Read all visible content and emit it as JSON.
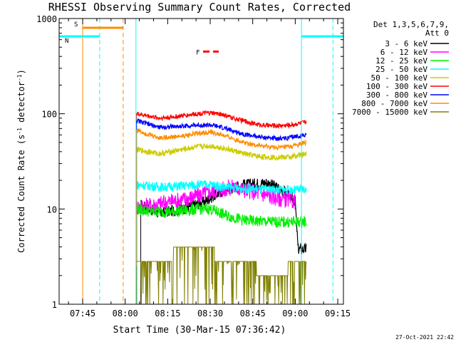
{
  "chart_data": {
    "type": "line",
    "title": "RHESSI Observing Summary Count Rates, Corrected",
    "ylabel_main": "Corrected Count Rate (s",
    "ylabel_sup": "-1",
    "ylabel_mid": " detector",
    "ylabel_sup2": "-1",
    "ylabel_end": ")",
    "xlabel": "Start Time (30-Mar-15 07:36:42)",
    "timestamp": "27-Oct-2021 22:42",
    "y_scale": "log",
    "ylim": [
      1,
      1000
    ],
    "xlim_minutes": [
      456.7,
      557.0
    ],
    "grid": false,
    "legend_placement": "top-right",
    "x_ticks": [
      {
        "min": 465,
        "label": "07:45"
      },
      {
        "min": 480,
        "label": "08:00"
      },
      {
        "min": 495,
        "label": "08:15"
      },
      {
        "min": 510,
        "label": "08:30"
      },
      {
        "min": 525,
        "label": "08:45"
      },
      {
        "min": 540,
        "label": "09:00"
      },
      {
        "min": 555,
        "label": "09:15"
      }
    ],
    "y_ticks": [
      {
        "value": 1,
        "label": "1"
      },
      {
        "value": 10,
        "label": "10"
      },
      {
        "value": 100,
        "label": "100"
      },
      {
        "value": 1000,
        "label": "1000"
      }
    ],
    "legend_header": [
      "Det 1,3,5,6,7,9,",
      "Att 0"
    ],
    "data_window_minutes": [
      483.8,
      543.9
    ],
    "series": [
      {
        "name": "3 - 6 keV",
        "color": "#000000",
        "points": [
          [
            485.5,
            11
          ],
          [
            492,
            9
          ],
          [
            500,
            10
          ],
          [
            508,
            12
          ],
          [
            515,
            16
          ],
          [
            522,
            18
          ],
          [
            530,
            19
          ],
          [
            535,
            16
          ],
          [
            538,
            14
          ],
          [
            540,
            12
          ],
          [
            541,
            3.8
          ],
          [
            544,
            3.8
          ]
        ]
      },
      {
        "name": "6 - 12 keV",
        "color": "#ff00ff",
        "points": [
          [
            484,
            10.5
          ],
          [
            490,
            11
          ],
          [
            496,
            12
          ],
          [
            500,
            12.5
          ],
          [
            506,
            14
          ],
          [
            510,
            15
          ],
          [
            514,
            16
          ],
          [
            518,
            17
          ],
          [
            522,
            16
          ],
          [
            526,
            15
          ],
          [
            530,
            14
          ],
          [
            534,
            13
          ],
          [
            538,
            12.5
          ],
          [
            540,
            12
          ]
        ]
      },
      {
        "name": "12 - 25 keV",
        "color": "#00ee00",
        "points": [
          [
            484,
            10
          ],
          [
            488,
            9.5
          ],
          [
            494,
            9.3
          ],
          [
            500,
            9.5
          ],
          [
            506,
            10
          ],
          [
            510,
            10
          ],
          [
            516,
            8.5
          ],
          [
            522,
            7.6
          ],
          [
            528,
            7.4
          ],
          [
            534,
            7.3
          ],
          [
            540,
            7.3
          ],
          [
            544,
            7.4
          ]
        ]
      },
      {
        "name": "25 - 50 keV",
        "color": "#00ffff",
        "points": [
          [
            484,
            18
          ],
          [
            488,
            17.5
          ],
          [
            494,
            17
          ],
          [
            500,
            17.5
          ],
          [
            505,
            18
          ],
          [
            510,
            18
          ],
          [
            515,
            17
          ],
          [
            520,
            16.5
          ],
          [
            525,
            16.2
          ],
          [
            530,
            16
          ],
          [
            535,
            16
          ],
          [
            540,
            15.8
          ],
          [
            544,
            16
          ]
        ]
      },
      {
        "name": "50 - 100 keV",
        "color": "#cccc00",
        "points": [
          [
            484,
            42
          ],
          [
            488,
            40
          ],
          [
            492,
            38
          ],
          [
            496,
            40
          ],
          [
            500,
            42
          ],
          [
            505,
            45
          ],
          [
            510,
            46
          ],
          [
            514,
            44
          ],
          [
            518,
            41
          ],
          [
            522,
            38
          ],
          [
            526,
            36
          ],
          [
            530,
            35
          ],
          [
            534,
            35
          ],
          [
            538,
            35
          ],
          [
            542,
            37
          ],
          [
            544,
            38
          ]
        ]
      },
      {
        "name": "100 - 300 keV",
        "color": "#ff0000",
        "points": [
          [
            484,
            100
          ],
          [
            488,
            95
          ],
          [
            492,
            90
          ],
          [
            496,
            92
          ],
          [
            500,
            95
          ],
          [
            505,
            100
          ],
          [
            510,
            102
          ],
          [
            514,
            99
          ],
          [
            518,
            90
          ],
          [
            522,
            84
          ],
          [
            526,
            78
          ],
          [
            530,
            75
          ],
          [
            534,
            75
          ],
          [
            538,
            76
          ],
          [
            542,
            80
          ],
          [
            544,
            82
          ]
        ]
      },
      {
        "name": "300 - 800 keV",
        "color": "#0000ff",
        "points": [
          [
            484,
            85
          ],
          [
            488,
            78
          ],
          [
            492,
            72
          ],
          [
            496,
            73
          ],
          [
            500,
            74
          ],
          [
            505,
            76
          ],
          [
            510,
            76
          ],
          [
            514,
            72
          ],
          [
            518,
            66
          ],
          [
            522,
            61
          ],
          [
            526,
            58
          ],
          [
            530,
            56
          ],
          [
            534,
            55
          ],
          [
            538,
            56
          ],
          [
            542,
            59
          ],
          [
            544,
            60
          ]
        ]
      },
      {
        "name": "800 - 7000 keV",
        "color": "#ff8c00",
        "points": [
          [
            484,
            68
          ],
          [
            488,
            61
          ],
          [
            492,
            56
          ],
          [
            496,
            57
          ],
          [
            500,
            58
          ],
          [
            505,
            62
          ],
          [
            510,
            64
          ],
          [
            514,
            60
          ],
          [
            518,
            55
          ],
          [
            522,
            50
          ],
          [
            526,
            47
          ],
          [
            530,
            45
          ],
          [
            534,
            44
          ],
          [
            538,
            45
          ],
          [
            542,
            48
          ],
          [
            544,
            50
          ]
        ]
      },
      {
        "name": "7000 - 15000 keV",
        "color": "#808000",
        "points": [
          [
            484,
            2.5
          ],
          [
            488,
            2.6
          ],
          [
            492,
            2.6
          ],
          [
            496,
            3.2
          ],
          [
            500,
            3.8
          ],
          [
            505,
            4.0
          ],
          [
            510,
            3.6
          ],
          [
            514,
            3.0
          ],
          [
            518,
            2.6
          ],
          [
            522,
            2.5
          ],
          [
            526,
            2.4
          ],
          [
            530,
            2.0
          ],
          [
            534,
            2.2
          ],
          [
            538,
            2.4
          ],
          [
            542,
            2.7
          ],
          [
            544,
            3.0
          ]
        ]
      }
    ],
    "segments": [
      {
        "label": "S",
        "color": "#ff8c00",
        "y": 800,
        "x0": 465,
        "x1": 479.3
      },
      {
        "label": "N",
        "color": "#00ffff",
        "y": 650,
        "x0": 456.7,
        "x1": 471
      },
      {
        "label": "",
        "color": "#00ffff",
        "y": 650,
        "x0": 542.2,
        "x1": 557
      },
      {
        "label": "F",
        "color": "#ff0000",
        "y": 450,
        "x0": 507.5,
        "x1": 513
      }
    ],
    "vlines": [
      {
        "min": 465,
        "color": "#ff8c00",
        "dash": false
      },
      {
        "min": 471,
        "color": "#00ffff",
        "dash": true
      },
      {
        "min": 479.3,
        "color": "#ff8c00",
        "dash": true
      },
      {
        "min": 483.8,
        "color": "#00ffff",
        "dash": false
      },
      {
        "min": 542.2,
        "color": "#00ffff",
        "dash": false
      },
      {
        "min": 553.3,
        "color": "#00ffff",
        "dash": true
      }
    ]
  }
}
